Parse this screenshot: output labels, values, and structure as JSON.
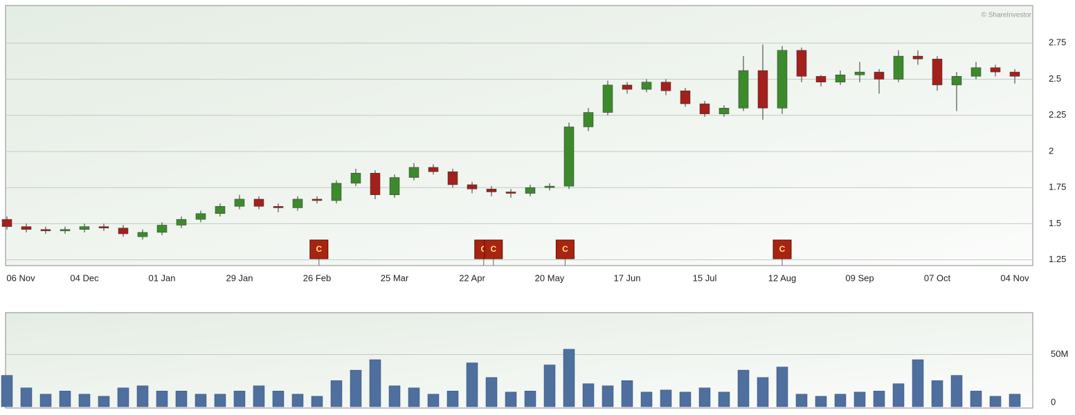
{
  "chart_data": {
    "type": "candlestick",
    "credit": "© ShareInvestor",
    "categories": [
      "06 Nov",
      null,
      null,
      null,
      "04 Dec",
      null,
      null,
      null,
      "01 Jan",
      null,
      null,
      null,
      "29 Jan",
      null,
      null,
      null,
      "26 Feb",
      null,
      null,
      null,
      "25 Mar",
      null,
      null,
      null,
      "22 Apr",
      null,
      null,
      null,
      "20 May",
      null,
      null,
      null,
      "17 Jun",
      null,
      null,
      null,
      "15 Jul",
      null,
      null,
      null,
      "12 Aug",
      null,
      null,
      null,
      "09 Sep",
      null,
      null,
      null,
      "07 Oct",
      null,
      null,
      null,
      "04 Nov"
    ],
    "open": [
      1.53,
      1.48,
      1.46,
      1.45,
      1.46,
      1.48,
      1.47,
      1.41,
      1.44,
      1.49,
      1.53,
      1.57,
      1.62,
      1.67,
      1.62,
      1.61,
      1.67,
      1.66,
      1.78,
      1.85,
      1.7,
      1.82,
      1.89,
      1.86,
      1.77,
      1.74,
      1.72,
      1.71,
      1.75,
      1.76,
      2.17,
      2.27,
      2.46,
      2.43,
      2.48,
      2.42,
      2.33,
      2.26,
      2.3,
      2.56,
      2.3,
      2.7,
      2.52,
      2.48,
      2.53,
      2.55,
      2.5,
      2.66,
      2.64,
      2.46,
      2.52,
      2.58,
      2.55
    ],
    "high": [
      1.55,
      1.5,
      1.48,
      1.48,
      1.5,
      1.5,
      1.49,
      1.46,
      1.51,
      1.55,
      1.59,
      1.64,
      1.7,
      1.69,
      1.64,
      1.69,
      1.69,
      1.8,
      1.88,
      1.87,
      1.84,
      1.92,
      1.91,
      1.88,
      1.79,
      1.76,
      1.74,
      1.77,
      1.78,
      2.2,
      2.3,
      2.49,
      2.48,
      2.5,
      2.5,
      2.44,
      2.35,
      2.32,
      2.66,
      2.74,
      2.73,
      2.72,
      2.53,
      2.56,
      2.62,
      2.57,
      2.7,
      2.7,
      2.66,
      2.55,
      2.62,
      2.6,
      2.57
    ],
    "low": [
      1.46,
      1.44,
      1.43,
      1.43,
      1.44,
      1.45,
      1.41,
      1.39,
      1.42,
      1.47,
      1.51,
      1.55,
      1.6,
      1.6,
      1.58,
      1.59,
      1.64,
      1.64,
      1.76,
      1.67,
      1.68,
      1.8,
      1.84,
      1.75,
      1.71,
      1.69,
      1.68,
      1.69,
      1.73,
      1.74,
      2.14,
      2.25,
      2.4,
      2.41,
      2.39,
      2.31,
      2.24,
      2.24,
      2.28,
      2.22,
      2.26,
      2.48,
      2.45,
      2.46,
      2.48,
      2.4,
      2.48,
      2.6,
      2.42,
      2.28,
      2.5,
      2.52,
      2.47
    ],
    "close": [
      1.48,
      1.46,
      1.45,
      1.46,
      1.48,
      1.47,
      1.43,
      1.44,
      1.49,
      1.53,
      1.57,
      1.62,
      1.67,
      1.62,
      1.61,
      1.67,
      1.66,
      1.78,
      1.85,
      1.7,
      1.82,
      1.89,
      1.86,
      1.77,
      1.74,
      1.72,
      1.71,
      1.75,
      1.76,
      2.17,
      2.27,
      2.46,
      2.43,
      2.48,
      2.42,
      2.33,
      2.26,
      2.3,
      2.56,
      2.3,
      2.7,
      2.52,
      2.48,
      2.53,
      2.55,
      2.5,
      2.66,
      2.64,
      2.46,
      2.52,
      2.58,
      2.55,
      2.52
    ],
    "up_color": "#3c8a2c",
    "down_color": "#a3201c",
    "ylim": [
      1.21,
      3.01
    ],
    "yticks": [
      1.25,
      1.5,
      1.75,
      2,
      2.25,
      2.5,
      2.75
    ],
    "grid": true,
    "events": {
      "x": [
        16.1,
        24.6,
        25.1,
        28.8,
        40
      ],
      "labels": [
        "C",
        "C",
        "C",
        "C",
        "C"
      ],
      "color": "#a82410"
    },
    "volume": {
      "color": "#4f6f9f",
      "values": [
        30000000,
        18000000,
        12000000,
        15000000,
        12000000,
        10000000,
        18000000,
        20000000,
        15000000,
        15000000,
        12000000,
        12000000,
        15000000,
        20000000,
        15000000,
        12000000,
        10000000,
        25000000,
        35000000,
        45000000,
        20000000,
        18000000,
        12000000,
        15000000,
        42000000,
        28000000,
        14000000,
        15000000,
        40000000,
        55000000,
        22000000,
        20000000,
        25000000,
        14000000,
        16000000,
        14000000,
        18000000,
        14000000,
        35000000,
        28000000,
        38000000,
        12000000,
        10000000,
        12000000,
        14000000,
        15000000,
        22000000,
        45000000,
        25000000,
        30000000,
        15000000,
        10000000,
        12000000
      ],
      "ylim": [
        0,
        90000000
      ],
      "yticks": [
        0,
        {
          "value": 50000000,
          "label": "50M"
        }
      ]
    }
  }
}
